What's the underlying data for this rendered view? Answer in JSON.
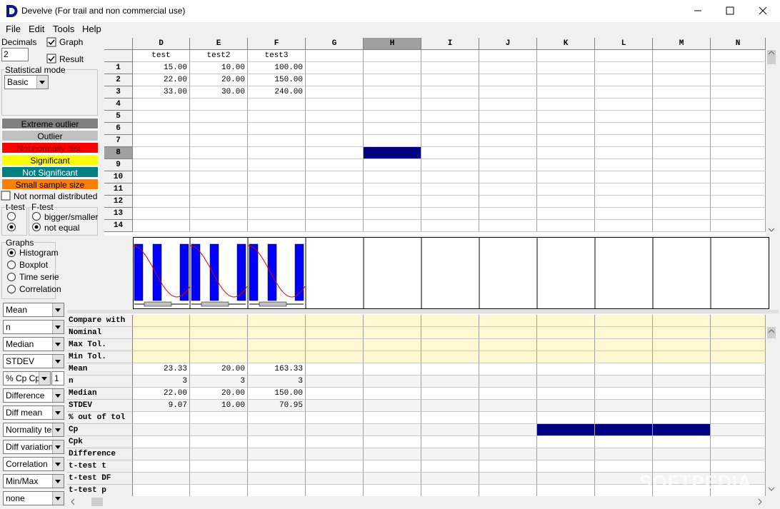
{
  "window": {
    "title": "Develve (For trail and non commercial use)"
  },
  "menu": [
    "File",
    "Edit",
    "Tools",
    "Help"
  ],
  "left_panel": {
    "decimals_label": "Decimals",
    "decimals_value": "2",
    "graph_checkbox": "Graph",
    "result_checkbox": "Result",
    "statistical_mode_label": "Statistical mode",
    "statistical_mode_value": "Basic",
    "legend": [
      {
        "label": "Extreme outlier",
        "color": "#808080",
        "text_color": "#000000"
      },
      {
        "label": "Outlier",
        "color": "#c0c0c0",
        "text_color": "#000000"
      },
      {
        "label": "Not normally dist.",
        "color": "#ff0000",
        "text_color": "#800000"
      },
      {
        "label": "Significant",
        "color": "#ffff00",
        "text_color": "#000000"
      },
      {
        "label": "Not Significant",
        "color": "#008080",
        "text_color": "#ffffff"
      },
      {
        "label": "Small sample size",
        "color": "#ff8000",
        "text_color": "#000000"
      }
    ],
    "not_normal_label": "Not normal distributed",
    "ttest_label": "t-test",
    "ftest_label": "F-test",
    "ftest_options": [
      "bigger/smaller",
      "not equal"
    ],
    "graphs_label": "Graphs",
    "graph_options": [
      "Histogram",
      "Boxplot",
      "Time serie",
      "Correlation"
    ],
    "dropdowns": [
      "Mean",
      "n",
      "Median",
      "STDEV",
      "% Cp Cpk",
      "Difference",
      "Diff mean",
      "Normality test",
      "Diff variation",
      "Correlation",
      "Min/Max",
      "none"
    ],
    "cp_value": "1"
  },
  "grid": {
    "columns": [
      "D",
      "E",
      "F",
      "G",
      "H",
      "I",
      "J",
      "K",
      "L",
      "M",
      "N"
    ],
    "header_row": [
      "test",
      "test2",
      "test3"
    ],
    "row_numbers": [
      1,
      2,
      3,
      4,
      5,
      6,
      7,
      8,
      9,
      10,
      11,
      12,
      13,
      14
    ],
    "rows": [
      [
        "15.00",
        "10.00",
        "100.00"
      ],
      [
        "22.00",
        "20.00",
        "150.00"
      ],
      [
        "33.00",
        "30.00",
        "240.00"
      ]
    ]
  },
  "results": [
    {
      "label": "Compare with"
    },
    {
      "label": "Nominal"
    },
    {
      "label": "Max Tol."
    },
    {
      "label": "Min Tol."
    },
    {
      "label": "Mean",
      "values": [
        "23.33",
        "20.00",
        "163.33"
      ]
    },
    {
      "label": "n",
      "values": [
        "3",
        "3",
        "3"
      ]
    },
    {
      "label": "Median",
      "values": [
        "22.00",
        "20.00",
        "150.00"
      ]
    },
    {
      "label": "STDEV",
      "values": [
        "9.07",
        "10.00",
        "70.95"
      ]
    },
    {
      "label": "% out of tol"
    },
    {
      "label": "Cp"
    },
    {
      "label": "Cpk"
    },
    {
      "label": "Difference"
    },
    {
      "label": "t-test t"
    },
    {
      "label": "t-test DF"
    },
    {
      "label": "t-test p"
    }
  ],
  "watermark": "SOFTPEDIA"
}
